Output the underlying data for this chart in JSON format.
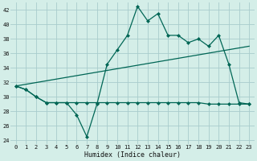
{
  "background_color": "#d4eee8",
  "grid_color": "#a8cccc",
  "line_color": "#006655",
  "xlim": [
    -0.5,
    23.5
  ],
  "ylim": [
    23.5,
    43.0
  ],
  "yticks": [
    24,
    26,
    28,
    30,
    32,
    34,
    36,
    38,
    40,
    42
  ],
  "xticks": [
    0,
    1,
    2,
    3,
    4,
    5,
    6,
    7,
    8,
    9,
    10,
    11,
    12,
    13,
    14,
    15,
    16,
    17,
    18,
    19,
    20,
    21,
    22,
    23
  ],
  "xlabel": "Humidex (Indice chaleur)",
  "line1_x": [
    0,
    1,
    2,
    3,
    4,
    5,
    6,
    7,
    8,
    9,
    10,
    11,
    12,
    13,
    14,
    15,
    16,
    17,
    18,
    19,
    20,
    21,
    22,
    23
  ],
  "line1_y": [
    31.5,
    31.0,
    30.0,
    29.2,
    29.2,
    29.2,
    27.5,
    24.5,
    29.0,
    34.5,
    36.5,
    38.5,
    42.5,
    40.5,
    41.5,
    38.5,
    38.5,
    37.5,
    38.0,
    37.0,
    38.5,
    34.5,
    29.2,
    29.0
  ],
  "line2_x": [
    0,
    1,
    2,
    3,
    4,
    5,
    6,
    7,
    8,
    9,
    10,
    11,
    12,
    13,
    14,
    15,
    16,
    17,
    18,
    19,
    20,
    21,
    22,
    23
  ],
  "line2_y": [
    31.5,
    31.0,
    30.0,
    29.2,
    29.2,
    29.2,
    29.2,
    29.2,
    29.2,
    29.2,
    29.2,
    29.2,
    29.2,
    29.2,
    29.2,
    29.2,
    29.2,
    29.2,
    29.2,
    29.0,
    29.0,
    29.0,
    29.0,
    29.0
  ],
  "line3_x": [
    0,
    23
  ],
  "line3_y": [
    31.5,
    37.0
  ]
}
